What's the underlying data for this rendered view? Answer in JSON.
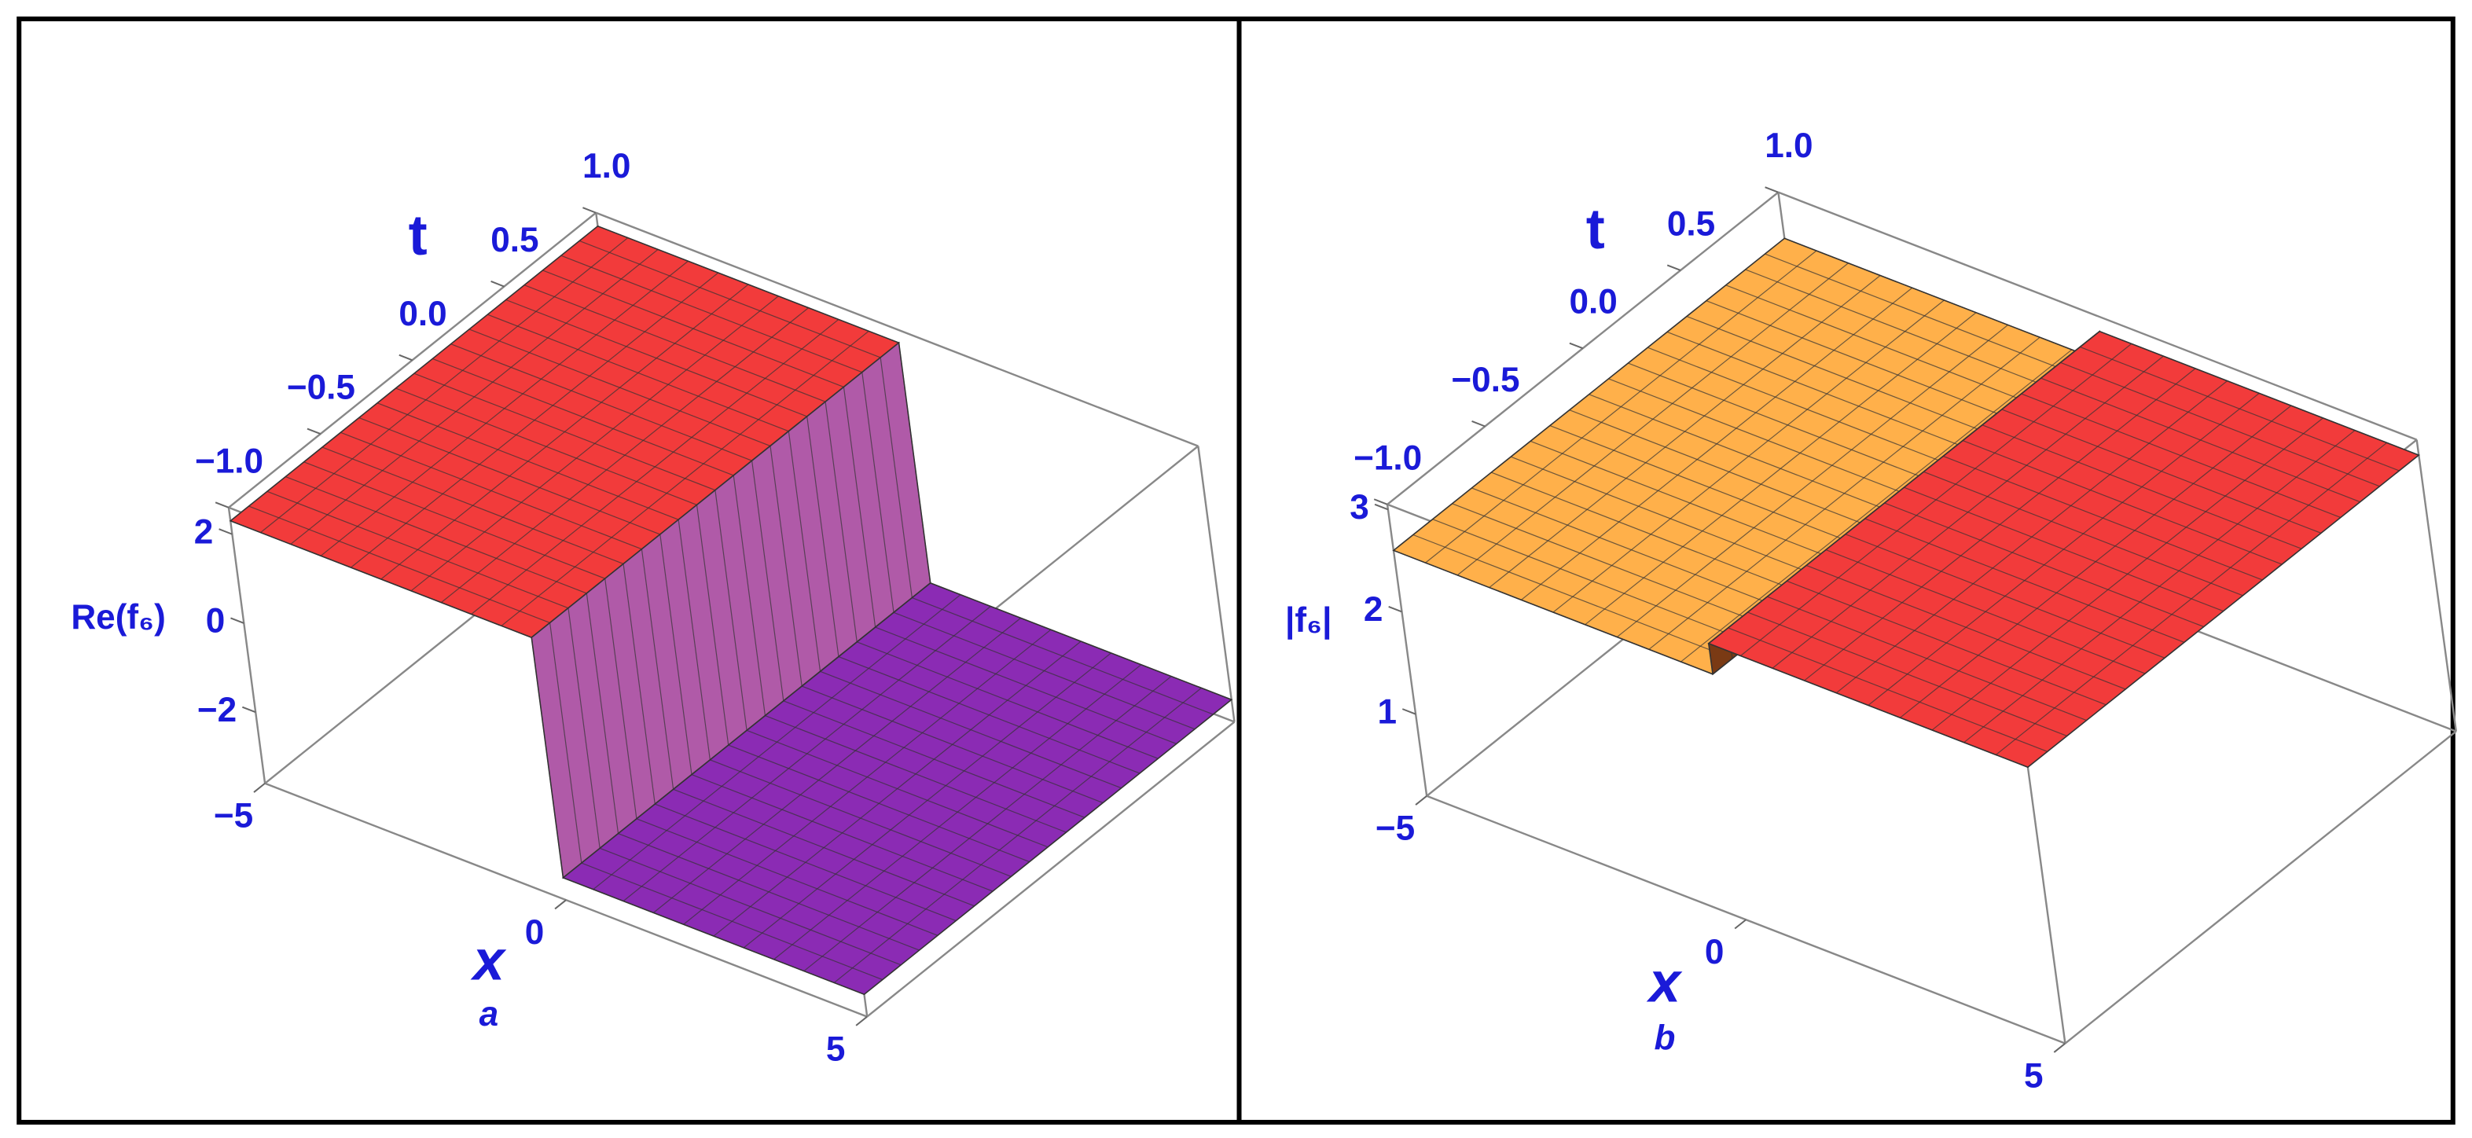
{
  "chart_data": [
    {
      "type": "surface3d",
      "x": [
        -5,
        0,
        0,
        5
      ],
      "values": [
        2.3,
        2.3,
        -3.1,
        -3.1
      ],
      "colors": [
        "#f23b3b",
        "#b05aa8",
        "#8b2bb4"
      ],
      "xlabel": "x",
      "ylabel": "t",
      "zlabel": "Re(f₆)",
      "caption": "a",
      "xlim": [
        -5,
        5
      ],
      "xticks": [
        {
          "value": -5,
          "label": "−5"
        },
        0,
        5
      ],
      "ylim": [
        -1,
        1
      ],
      "yticks": [
        {
          "value": -1,
          "label": "−1.0"
        },
        {
          "value": -0.5,
          "label": "−0.5"
        },
        {
          "value": 0,
          "label": "0.0"
        },
        {
          "value": 0.5,
          "label": "0.5"
        },
        {
          "value": 1,
          "label": "1.0"
        }
      ],
      "zlim": [
        -3.6,
        2.6
      ],
      "zticks": [
        {
          "value": -2,
          "label": "−2"
        },
        0,
        2
      ]
    },
    {
      "type": "surface3d",
      "x": [
        -5,
        0,
        0,
        5
      ],
      "values": [
        2.6,
        2.6,
        2.9,
        2.9
      ],
      "colors": [
        "#ffb04a",
        "#7a3a14",
        "#f23b3b"
      ],
      "xlabel": "x",
      "ylabel": "t",
      "zlabel": "|f₆|",
      "caption": "b",
      "xlim": [
        -5,
        5
      ],
      "xticks": [
        {
          "value": -5,
          "label": "−5"
        },
        0,
        5
      ],
      "ylim": [
        -1,
        1
      ],
      "yticks": [
        {
          "value": -1,
          "label": "−1.0"
        },
        {
          "value": -0.5,
          "label": "−0.5"
        },
        {
          "value": 0,
          "label": "0.0"
        },
        {
          "value": 0.5,
          "label": "0.5"
        },
        {
          "value": 1,
          "label": "1.0"
        }
      ],
      "zlim": [
        0.2,
        3.05
      ],
      "zticks": [
        1,
        2,
        3
      ]
    }
  ]
}
